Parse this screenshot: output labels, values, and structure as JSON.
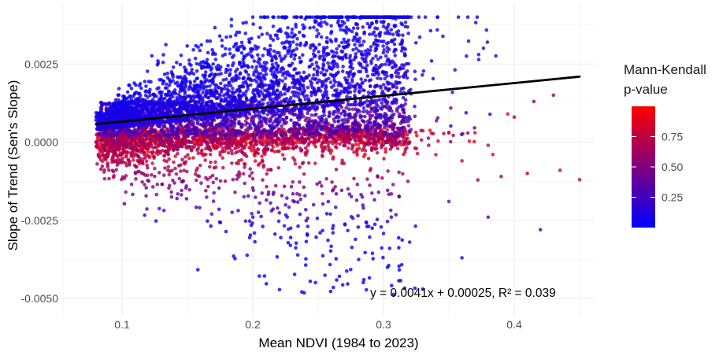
{
  "chart_data": {
    "type": "scatter",
    "xlabel": "Mean NDVI (1984 to 2023)",
    "ylabel": "Slope of Trend (Sen's Slope)",
    "xlim": [
      0.06,
      0.465
    ],
    "ylim": [
      -0.0057,
      0.0041
    ],
    "x_ticks": [
      0.1,
      0.2,
      0.3,
      0.4
    ],
    "x_tick_labels": [
      "0.1",
      "0.2",
      "0.3",
      "0.4"
    ],
    "y_ticks": [
      -0.005,
      -0.0025,
      0.0,
      0.0025
    ],
    "y_tick_labels": [
      "-0.0050",
      "-0.0025",
      "0.0000",
      "0.0025"
    ],
    "grid": true,
    "trend_line": {
      "slope": 0.0041,
      "intercept": 0.00025,
      "x_range": [
        0.08,
        0.45
      ]
    },
    "annotation": "y = 0.0041x + 0.00025, R² = 0.039",
    "color_scale": {
      "title_lines": [
        "Mann-Kendall",
        "p-value"
      ],
      "low_color": "#0000ff",
      "high_color": "#ff0000",
      "range": [
        0.0,
        1.0
      ],
      "ticks": [
        0.25,
        0.5,
        0.75
      ],
      "tick_labels": [
        "0.25",
        "0.50",
        "0.75"
      ],
      "placement": "right"
    },
    "point_count_approx": 6500,
    "outlier_points": [
      {
        "x": 0.45,
        "y": -0.0012,
        "p": 0.85
      },
      {
        "x": 0.435,
        "y": -0.0009,
        "p": 0.8
      },
      {
        "x": 0.41,
        "y": -0.001,
        "p": 0.7
      },
      {
        "x": 0.39,
        "y": -0.0011,
        "p": 0.65
      },
      {
        "x": 0.42,
        "y": -0.0028,
        "p": 0.35
      },
      {
        "x": 0.38,
        "y": -0.0024,
        "p": 0.45
      },
      {
        "x": 0.36,
        "y": -0.0037,
        "p": 0.15
      },
      {
        "x": 0.35,
        "y": -0.0019,
        "p": 0.4
      },
      {
        "x": 0.32,
        "y": -0.0032,
        "p": 0.2
      },
      {
        "x": 0.285,
        "y": -0.0044,
        "p": 0.05
      },
      {
        "x": 0.33,
        "y": -0.0047,
        "p": 0.3
      },
      {
        "x": 0.43,
        "y": 0.0015,
        "p": 0.6
      },
      {
        "x": 0.415,
        "y": 0.0013,
        "p": 0.5
      },
      {
        "x": 0.4,
        "y": 0.0008,
        "p": 0.7
      },
      {
        "x": 0.37,
        "y": 0.0003,
        "p": 0.85
      },
      {
        "x": 0.34,
        "y": -0.0004,
        "p": 0.9
      },
      {
        "x": 0.36,
        "y": -0.0006,
        "p": 0.8
      },
      {
        "x": 0.38,
        "y": -0.0001,
        "p": 0.75
      },
      {
        "x": 0.395,
        "y": 0.0009,
        "p": 0.95
      },
      {
        "x": 0.31,
        "y": 0.0021,
        "p": 0.2
      },
      {
        "x": 0.3,
        "y": 0.0037,
        "p": 0.1
      },
      {
        "x": 0.2,
        "y": 0.004,
        "p": 0.05
      }
    ]
  }
}
